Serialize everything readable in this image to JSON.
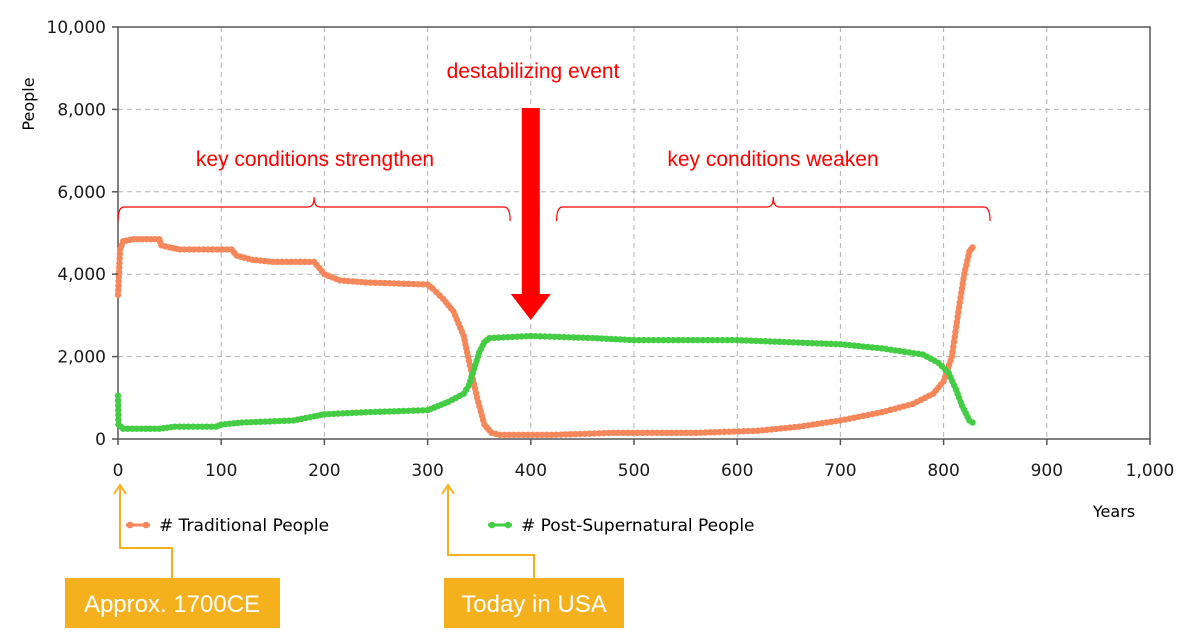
{
  "chart_data": {
    "type": "line",
    "xlabel": "Years",
    "ylabel": "People",
    "xlim": [
      0,
      1000
    ],
    "ylim": [
      0,
      10000
    ],
    "grid": true,
    "legend_position": "bottom",
    "x_ticks": [
      0,
      100,
      200,
      300,
      400,
      500,
      600,
      700,
      800,
      900,
      1000
    ],
    "x_tick_labels": [
      "0",
      "100",
      "200",
      "300",
      "400",
      "500",
      "600",
      "700",
      "800",
      "900",
      "1,000"
    ],
    "y_ticks": [
      0,
      2000,
      4000,
      6000,
      8000,
      10000
    ],
    "y_tick_labels": [
      "0",
      "2,000",
      "4,000",
      "6,000",
      "8,000",
      "10,000"
    ],
    "series": [
      {
        "name": "# Traditional People",
        "color": "#f5875a",
        "points": [
          [
            0,
            3500
          ],
          [
            2,
            4600
          ],
          [
            5,
            4800
          ],
          [
            15,
            4850
          ],
          [
            40,
            4850
          ],
          [
            42,
            4700
          ],
          [
            50,
            4650
          ],
          [
            60,
            4600
          ],
          [
            110,
            4600
          ],
          [
            115,
            4450
          ],
          [
            130,
            4350
          ],
          [
            150,
            4300
          ],
          [
            190,
            4300
          ],
          [
            200,
            4000
          ],
          [
            215,
            3850
          ],
          [
            240,
            3800
          ],
          [
            300,
            3750
          ],
          [
            305,
            3650
          ],
          [
            315,
            3400
          ],
          [
            325,
            3100
          ],
          [
            335,
            2500
          ],
          [
            340,
            1900
          ],
          [
            348,
            1000
          ],
          [
            355,
            350
          ],
          [
            362,
            150
          ],
          [
            370,
            100
          ],
          [
            420,
            100
          ],
          [
            480,
            150
          ],
          [
            560,
            150
          ],
          [
            620,
            200
          ],
          [
            660,
            300
          ],
          [
            700,
            450
          ],
          [
            740,
            650
          ],
          [
            770,
            850
          ],
          [
            790,
            1100
          ],
          [
            800,
            1400
          ],
          [
            808,
            2000
          ],
          [
            815,
            3200
          ],
          [
            820,
            4000
          ],
          [
            825,
            4550
          ],
          [
            828,
            4650
          ]
        ]
      },
      {
        "name": "# Post-Supernatural People",
        "color": "#44cc44",
        "points": [
          [
            0,
            1050
          ],
          [
            0.5,
            350
          ],
          [
            5,
            250
          ],
          [
            40,
            250
          ],
          [
            55,
            300
          ],
          [
            95,
            300
          ],
          [
            100,
            350
          ],
          [
            120,
            400
          ],
          [
            170,
            450
          ],
          [
            190,
            550
          ],
          [
            200,
            600
          ],
          [
            240,
            650
          ],
          [
            300,
            700
          ],
          [
            310,
            800
          ],
          [
            320,
            900
          ],
          [
            335,
            1100
          ],
          [
            340,
            1300
          ],
          [
            345,
            1700
          ],
          [
            350,
            2100
          ],
          [
            355,
            2350
          ],
          [
            360,
            2450
          ],
          [
            400,
            2500
          ],
          [
            460,
            2450
          ],
          [
            500,
            2400
          ],
          [
            600,
            2400
          ],
          [
            650,
            2350
          ],
          [
            700,
            2300
          ],
          [
            740,
            2200
          ],
          [
            780,
            2050
          ],
          [
            795,
            1850
          ],
          [
            805,
            1600
          ],
          [
            812,
            1200
          ],
          [
            818,
            800
          ],
          [
            825,
            450
          ],
          [
            828,
            400
          ]
        ]
      }
    ],
    "annotations": {
      "event_label": "destabilizing event",
      "event_x": 400,
      "left_bracket_label": "key conditions strengthen",
      "right_bracket_label": "key conditions weaken",
      "left_bracket_range": [
        0,
        380
      ],
      "right_bracket_range": [
        425,
        845
      ],
      "callout_1": "Approx. 1700CE",
      "callout_1_x": 0,
      "callout_2": "Today in USA",
      "callout_2_x": 320,
      "annotation_color": "#ff0000",
      "callout_color": "#f5b11d"
    }
  }
}
